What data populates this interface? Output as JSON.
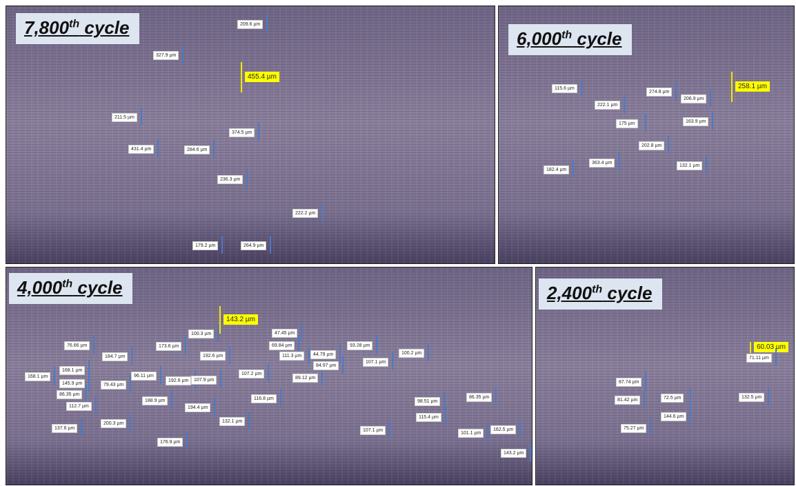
{
  "panels": [
    {
      "title": {
        "number": "7,800",
        "suffix": "th",
        "word": "cycle"
      },
      "highlight": "455.4 µm",
      "measurements": [
        "209.6 µm",
        "327.9 µm",
        "211.5 µm",
        "374.5 µm",
        "431.4 µm",
        "284.6 µm",
        "236.3 µm",
        "222.2 µm",
        "179.2 µm",
        "264.9 µm"
      ]
    },
    {
      "title": {
        "number": "6,000",
        "suffix": "th",
        "word": "cycle"
      },
      "highlight": "258.1 µm",
      "measurements": [
        "115.6 µm",
        "222.1 µm",
        "274.8 µm",
        "206.9 µm",
        "175 µm",
        "163.9 µm",
        "202.8 µm",
        "363.4 µm",
        "182.4 µm",
        "132.1 µm"
      ]
    },
    {
      "title": {
        "number": "4,000",
        "suffix": "th",
        "word": "cycle"
      },
      "highlight": "143.2 µm",
      "measurements": [
        "100.3 µm",
        "47.45 µm",
        "76.66 µm",
        "173.6 µm",
        "69.84 µm",
        "184.7 µm",
        "192.6 µm",
        "111.3 µm",
        "44.79 µm",
        "93.28 µm",
        "100.2 µm",
        "107.1 µm",
        "168.1 µm",
        "168.1 µm",
        "96.11 µm",
        "107.2 µm",
        "145.9 µm",
        "79.43 µm",
        "192.6 µm",
        "107.9 µm",
        "89.12 µm",
        "84.97 µm",
        "86.35 µm",
        "188.9 µm",
        "116.8 µm",
        "112.7 µm",
        "194.4 µm",
        "200.3 µm",
        "98.51 µm",
        "86.35 µm",
        "115.4 µm",
        "137.6 µm",
        "132.1 µm",
        "107.1 µm",
        "101.1 µm",
        "162.5 µm",
        "176.9 µm",
        "143.2 µm"
      ]
    },
    {
      "title": {
        "number": "2,400",
        "suffix": "th",
        "word": "cycle"
      },
      "highlight": "60.03 µm",
      "measurements": [
        "71.11 µm",
        "87.74 µm",
        "81.42 µm",
        "72.5 µm",
        "132.5 µm",
        "144.6 µm",
        "75.27 µm"
      ]
    }
  ]
}
